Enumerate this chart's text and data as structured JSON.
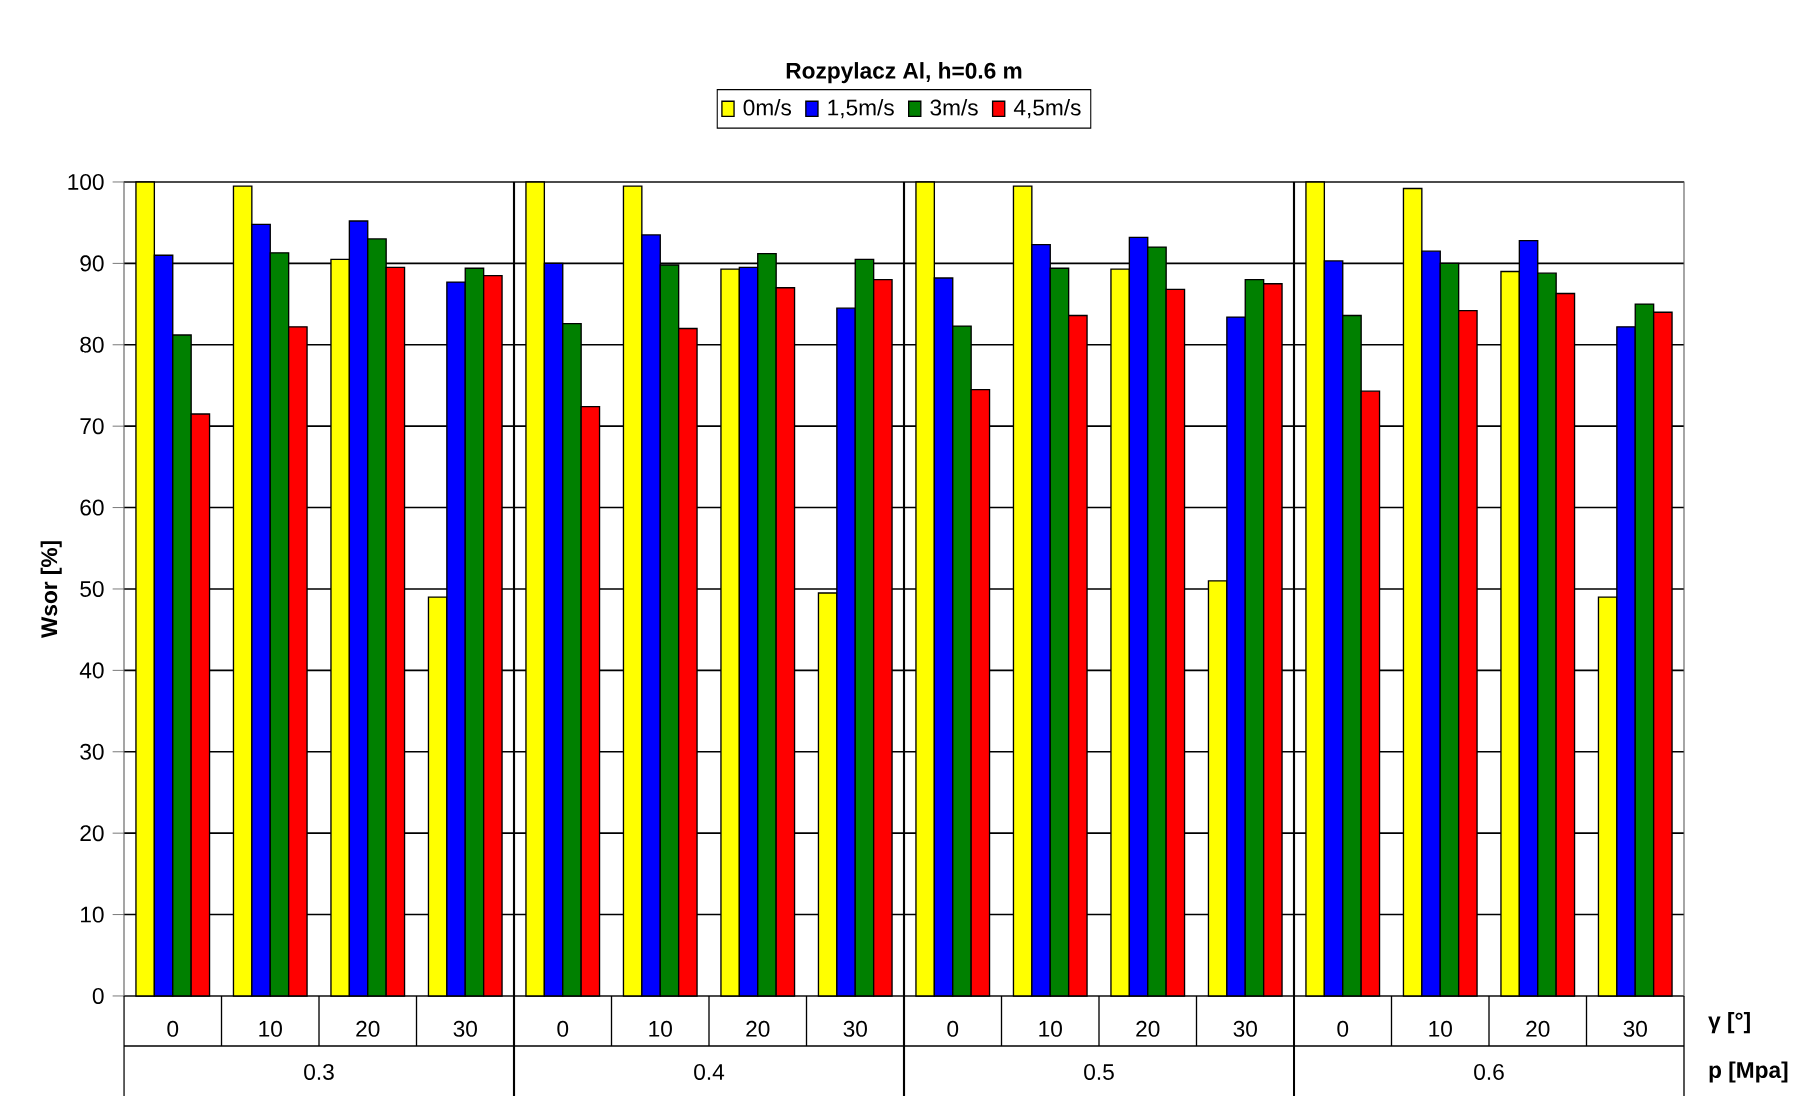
{
  "chart_data": {
    "type": "bar",
    "title": "Rozpylacz Al, h=0.6 m",
    "xlabel": "γ [°]",
    "ylabel": "Wsor [%]",
    "categories": [
      "0",
      "10",
      "20",
      "30",
      "0",
      "10",
      "20",
      "30",
      "0",
      "10",
      "20",
      "30",
      "0",
      "10",
      "20",
      "30"
    ],
    "annotations": [
      "p [Mpa]",
      "0.3",
      "0.4",
      "0.5",
      "0.6"
    ],
    "series": [
      {
        "name": "0m/s",
        "color": "#ffff00",
        "values": [
          100,
          99.5,
          90.5,
          49,
          100,
          99.5,
          89.3,
          49.5,
          100,
          99.5,
          89.3,
          51,
          100,
          99.2,
          89,
          49
        ]
      },
      {
        "name": "1,5m/s",
        "color": "#0000ff",
        "values": [
          91,
          94.8,
          95.2,
          87.7,
          90,
          93.5,
          89.5,
          84.5,
          88.2,
          92.3,
          93.2,
          83.4,
          90.3,
          91.5,
          92.8,
          82.2
        ]
      },
      {
        "name": "3m/s",
        "color": "#008000",
        "values": [
          81.2,
          91.3,
          93,
          89.4,
          82.6,
          89.8,
          91.2,
          90.5,
          82.3,
          89.4,
          92,
          88,
          83.6,
          90,
          88.8,
          85
        ]
      },
      {
        "name": "4,5m/s",
        "color": "#ff0000",
        "values": [
          71.5,
          82.2,
          89.5,
          88.5,
          72.4,
          82,
          87,
          88,
          74.5,
          83.6,
          86.8,
          87.5,
          74.3,
          84.2,
          86.3,
          84
        ]
      }
    ],
    "ylim": [
      0,
      100
    ],
    "yticks": [
      0,
      10,
      20,
      30,
      40,
      50,
      60,
      70,
      80,
      90,
      100
    ],
    "grid": "y",
    "legend": "top"
  }
}
